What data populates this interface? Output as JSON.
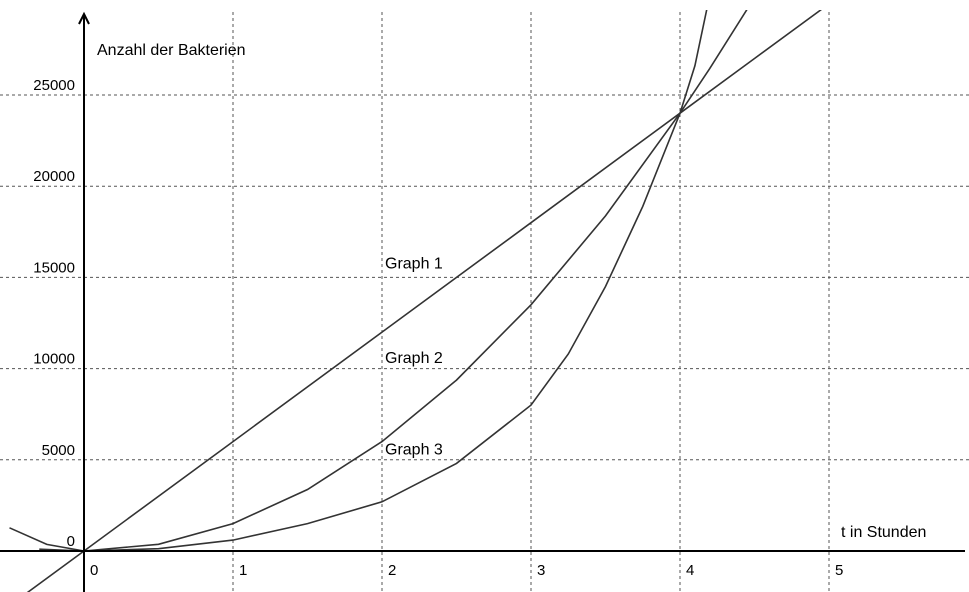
{
  "chart_data": {
    "type": "line",
    "xlabel": "t in Stunden",
    "ylabel": "Anzahl der Bakterien",
    "xlim": [
      -0.5,
      5.9
    ],
    "ylim": [
      -2500,
      29000
    ],
    "grid": true,
    "x_ticks": [
      {
        "value": 0,
        "label": "0"
      },
      {
        "value": 1,
        "label": "1"
      },
      {
        "value": 2,
        "label": "2"
      },
      {
        "value": 3,
        "label": "3"
      },
      {
        "value": 4,
        "label": "4"
      },
      {
        "value": 5,
        "label": "5"
      }
    ],
    "y_ticks": [
      {
        "value": 0,
        "label": "0"
      },
      {
        "value": 5000,
        "label": "5000"
      },
      {
        "value": 10000,
        "label": "10000"
      },
      {
        "value": 15000,
        "label": "15000"
      },
      {
        "value": 20000,
        "label": "20000"
      },
      {
        "value": 25000,
        "label": "25000"
      }
    ],
    "series": [
      {
        "name": "Graph 1",
        "label_at": {
          "x": 2.0,
          "y": 15500
        },
        "points": [
          [
            -0.5,
            -3000
          ],
          [
            0,
            0
          ],
          [
            1,
            6000
          ],
          [
            2,
            12000
          ],
          [
            3,
            18000
          ],
          [
            4,
            24000
          ],
          [
            4.5,
            27000
          ],
          [
            4.95,
            29700
          ]
        ]
      },
      {
        "name": "Graph 2",
        "label_at": {
          "x": 2.0,
          "y": 10300
        },
        "points": [
          [
            -0.3,
            100
          ],
          [
            0,
            0
          ],
          [
            0.5,
            370
          ],
          [
            1,
            1500
          ],
          [
            1.5,
            3370
          ],
          [
            2,
            6000
          ],
          [
            2.5,
            9370
          ],
          [
            3,
            13500
          ],
          [
            3.5,
            18370
          ],
          [
            4,
            24000
          ],
          [
            4.2,
            26460
          ],
          [
            4.45,
            29700
          ]
        ]
      },
      {
        "name": "Graph 3",
        "label_at": {
          "x": 2.0,
          "y": 5300
        },
        "points": [
          [
            -0.5,
            1270
          ],
          [
            -0.25,
            360
          ],
          [
            0,
            0
          ],
          [
            0.5,
            125
          ],
          [
            1,
            600
          ],
          [
            1.5,
            1500
          ],
          [
            2,
            2700
          ],
          [
            2.5,
            4800
          ],
          [
            3,
            8000
          ],
          [
            3.25,
            10800
          ],
          [
            3.5,
            14500
          ],
          [
            3.75,
            18900
          ],
          [
            4,
            24000
          ],
          [
            4.1,
            26600
          ],
          [
            4.18,
            29700
          ]
        ]
      }
    ]
  }
}
